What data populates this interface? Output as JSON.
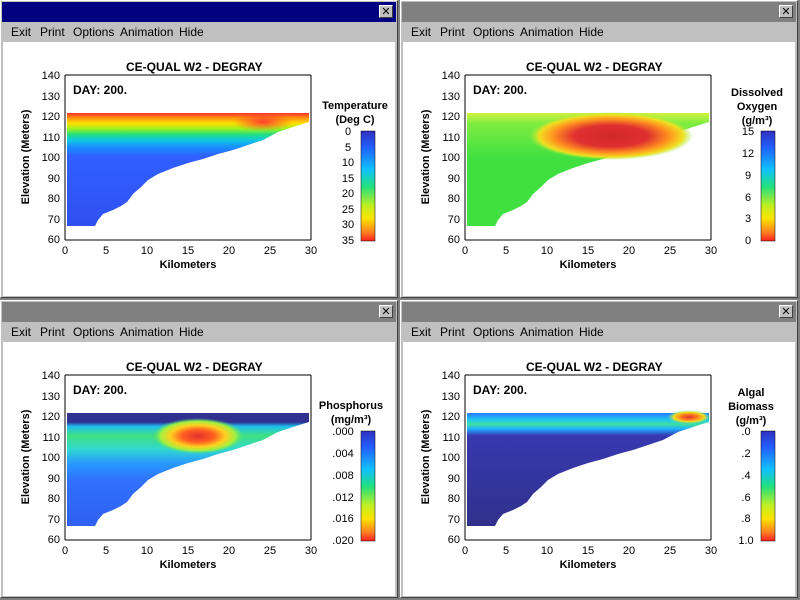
{
  "windows": [
    {
      "id": "temperature",
      "active": true,
      "close_glyph": "✕",
      "menu": [
        "Exit",
        "Print",
        "Options",
        "Animation",
        "Hide"
      ],
      "plot_title": "CE-QUAL W2 - DEGRAY",
      "day_label": "DAY: 200.",
      "ylabel": "Elevation (Meters)",
      "xlabel": "Kilometers",
      "yticks": [
        "140",
        "130",
        "120",
        "110",
        "100",
        "90",
        "80",
        "70",
        "60"
      ],
      "xticks": [
        "0",
        "5",
        "10",
        "15",
        "20",
        "25",
        "30"
      ],
      "colorbar_title": [
        "Temperature",
        "(Deg C)"
      ],
      "colorbar_ticks": [
        "0",
        "5",
        "10",
        "15",
        "20",
        "25",
        "30",
        "35"
      ],
      "colorbar_reversed": true
    },
    {
      "id": "dissolved-oxygen",
      "active": false,
      "close_glyph": "✕",
      "menu": [
        "Exit",
        "Print",
        "Options",
        "Animation",
        "Hide"
      ],
      "plot_title": "CE-QUAL W2 - DEGRAY",
      "day_label": "DAY: 200.",
      "ylabel": "Elevation (Meters)",
      "xlabel": "Kilometers",
      "yticks": [
        "140",
        "130",
        "120",
        "110",
        "100",
        "90",
        "80",
        "70",
        "60"
      ],
      "xticks": [
        "0",
        "5",
        "10",
        "15",
        "20",
        "25",
        "30"
      ],
      "colorbar_title": [
        "Dissolved",
        "Oxygen",
        "(g/m³)"
      ],
      "colorbar_ticks": [
        "15",
        "12",
        "9",
        "6",
        "3",
        "0"
      ],
      "colorbar_reversed": false
    },
    {
      "id": "phosphorus",
      "active": false,
      "close_glyph": "✕",
      "menu": [
        "Exit",
        "Print",
        "Options",
        "Animation",
        "Hide"
      ],
      "plot_title": "CE-QUAL W2 - DEGRAY",
      "day_label": "DAY: 200.",
      "ylabel": "Elevation (Meters)",
      "xlabel": "Kilometers",
      "yticks": [
        "140",
        "130",
        "120",
        "110",
        "100",
        "90",
        "80",
        "70",
        "60"
      ],
      "xticks": [
        "0",
        "5",
        "10",
        "15",
        "20",
        "25",
        "30"
      ],
      "colorbar_title": [
        "Phosphorus",
        "(mg/m³)"
      ],
      "colorbar_ticks": [
        ".000",
        ".004",
        ".008",
        ".012",
        ".016",
        ".020"
      ],
      "colorbar_reversed": true
    },
    {
      "id": "algal-biomass",
      "active": false,
      "close_glyph": "✕",
      "menu": [
        "Exit",
        "Print",
        "Options",
        "Animation",
        "Hide"
      ],
      "plot_title": "CE-QUAL W2 - DEGRAY",
      "day_label": "DAY: 200.",
      "ylabel": "Elevation (Meters)",
      "xlabel": "Kilometers",
      "yticks": [
        "140",
        "130",
        "120",
        "110",
        "100",
        "90",
        "80",
        "70",
        "60"
      ],
      "xticks": [
        "0",
        "5",
        "10",
        "15",
        "20",
        "25",
        "30"
      ],
      "colorbar_title": [
        "Algal",
        "Biomass",
        "(g/m³)"
      ],
      "colorbar_ticks": [
        ".0",
        ".2",
        ".4",
        ".6",
        ".8",
        "1.0"
      ],
      "colorbar_reversed": true
    }
  ],
  "colors": {
    "active_titlebar": "#000080",
    "inactive_titlebar": "#808080",
    "window_face": "#c0c0c0",
    "desktop": "#808080"
  }
}
